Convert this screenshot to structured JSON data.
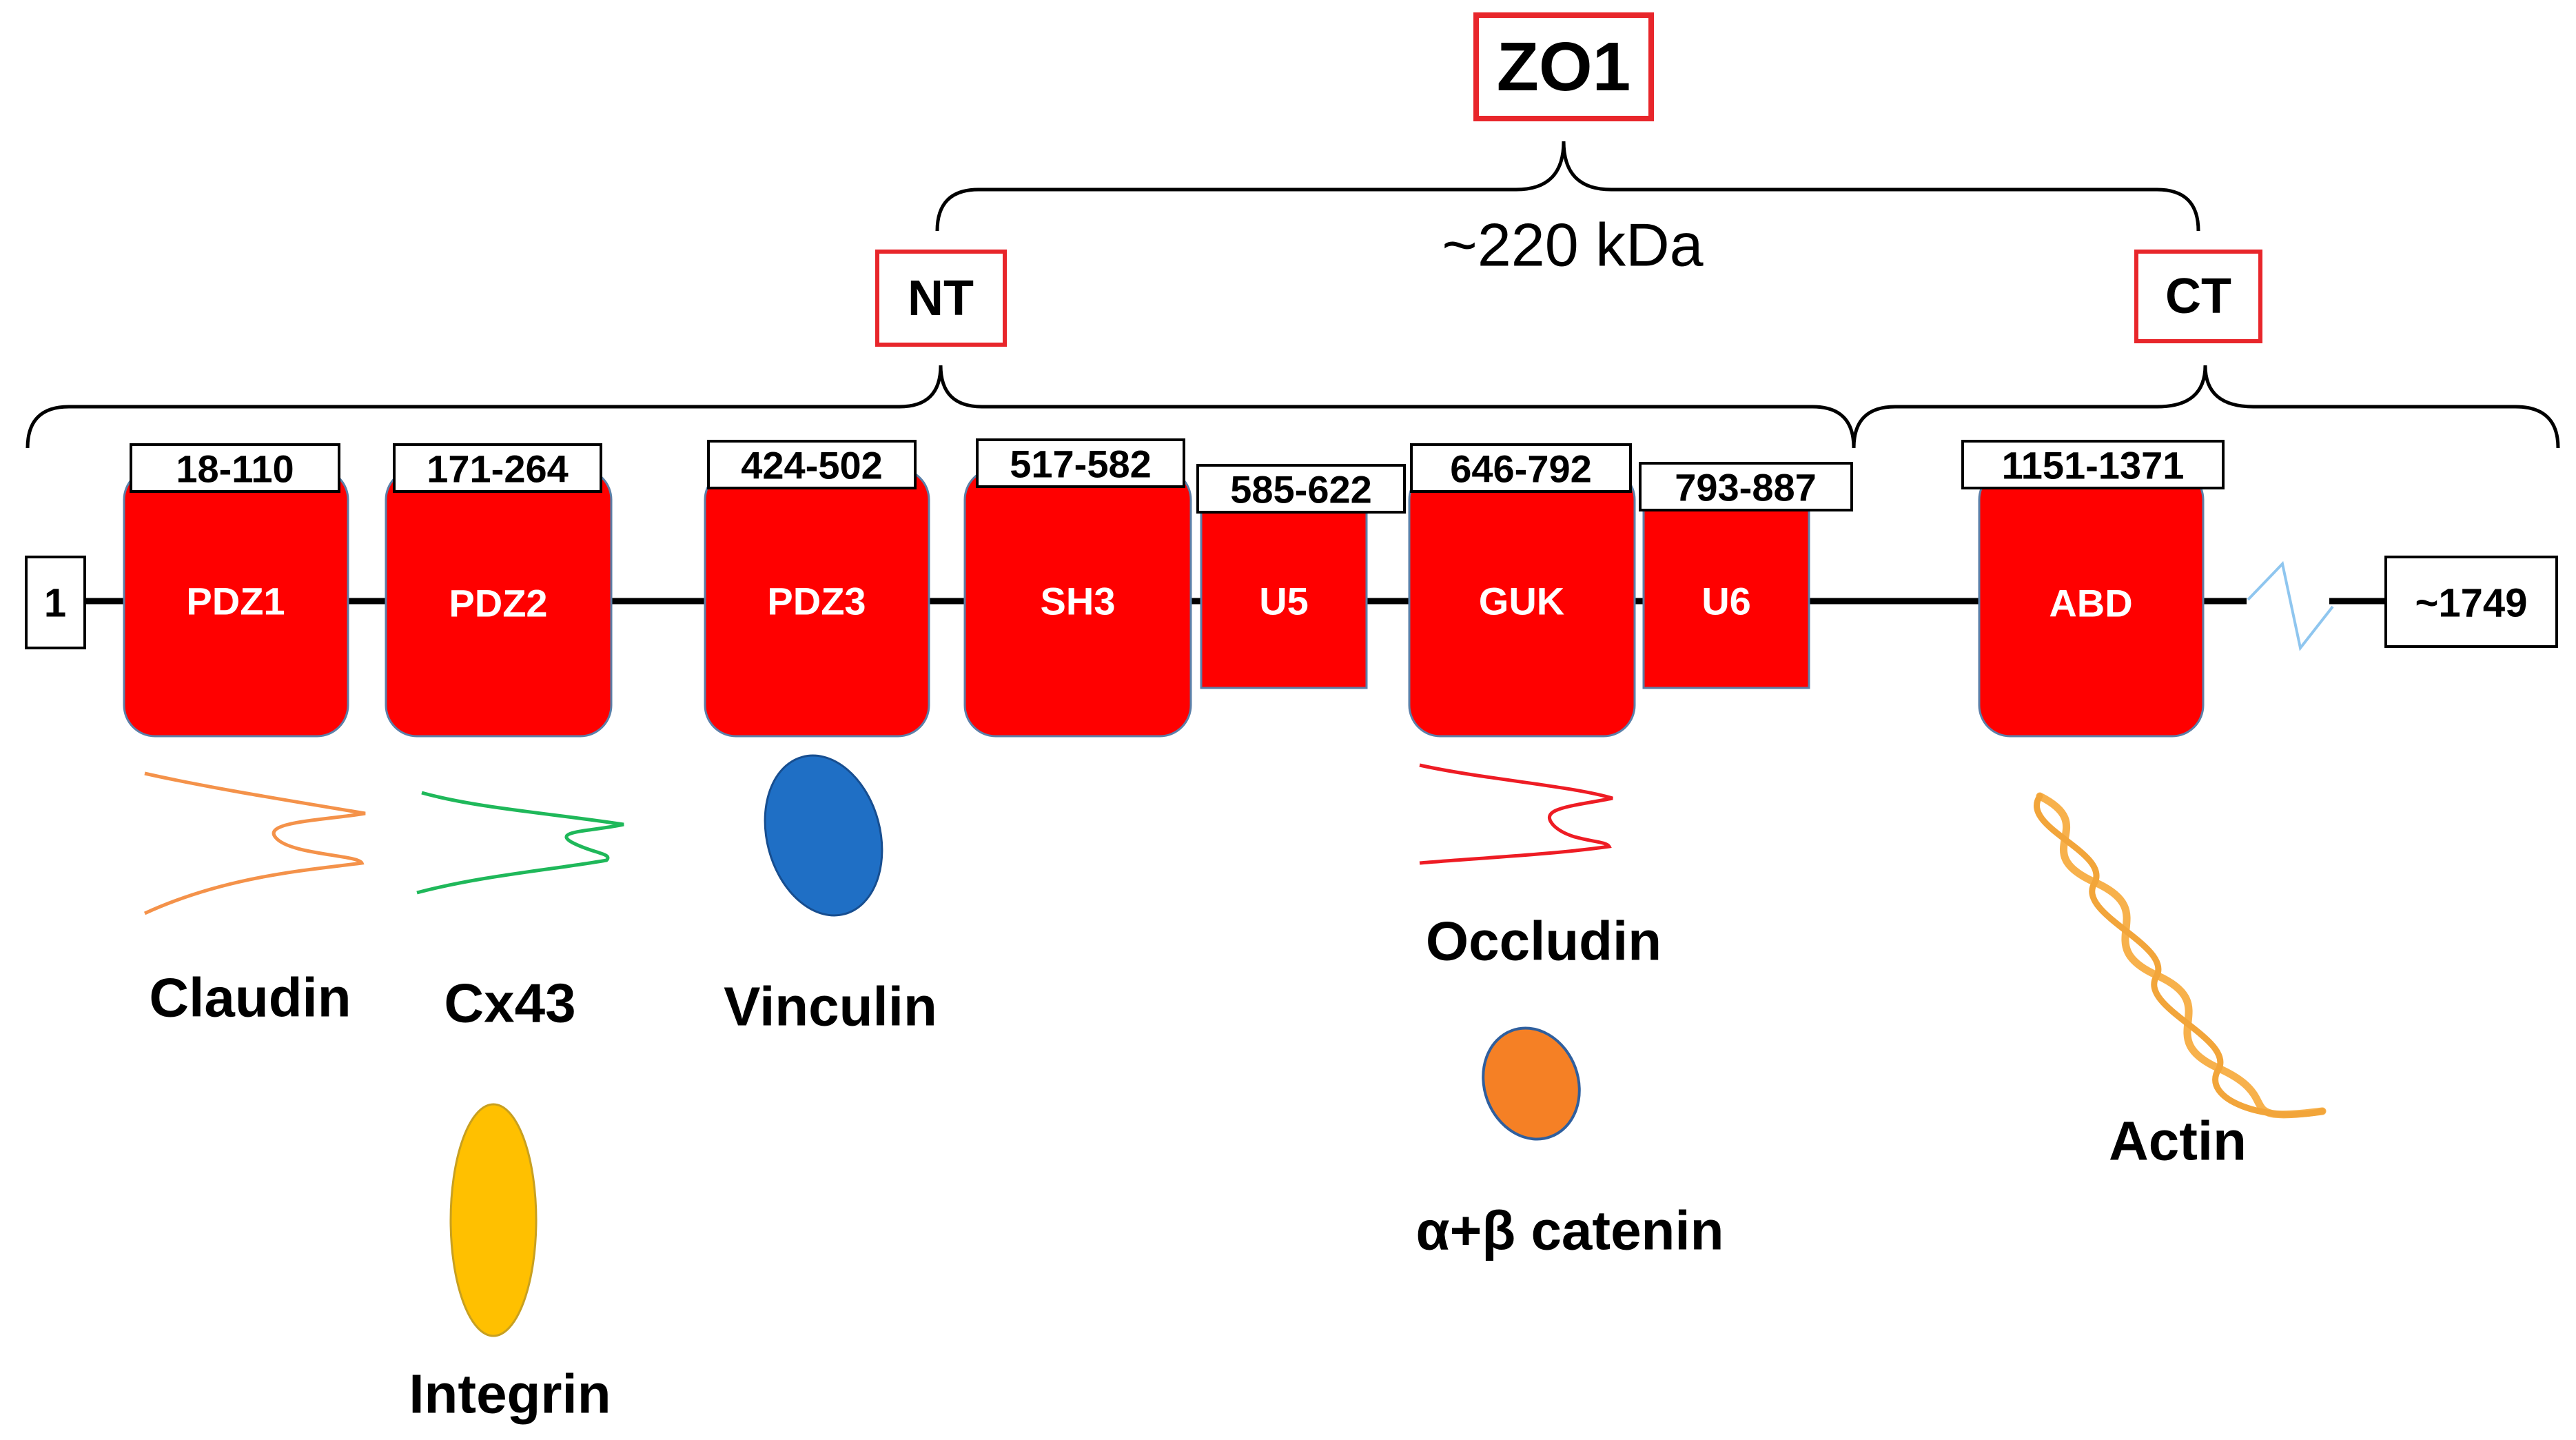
{
  "protein": {
    "name": "ZO1",
    "mass": "~220 kDa"
  },
  "regions": {
    "nt": "NT",
    "ct": "CT"
  },
  "termini": {
    "start": "1",
    "end": "~1749"
  },
  "domains": [
    {
      "label": "PDZ1",
      "range": "18-110"
    },
    {
      "label": "PDZ2",
      "range": "171-264"
    },
    {
      "label": "PDZ3",
      "range": "424-502"
    },
    {
      "label": "SH3",
      "range": "517-582"
    },
    {
      "label": "U5",
      "range": "585-622"
    },
    {
      "label": "GUK",
      "range": "646-792"
    },
    {
      "label": "U6",
      "range": "793-887"
    },
    {
      "label": "ABD",
      "range": "1151-1371"
    }
  ],
  "partners": {
    "claudin": "Claudin",
    "cx43": "Cx43",
    "integrin": "Integrin",
    "vinculin": "Vinculin",
    "occludin": "Occludin",
    "catenin": "α+β catenin",
    "actin": "Actin"
  },
  "colors": {
    "domain_fill": "#ff0000",
    "highlight_box": "#e8262b",
    "claudin": "#f4924a",
    "cx43": "#1fb85a",
    "integrin": "#ffc000",
    "vinculin": "#1f6fc5",
    "occludin": "#ee1c24",
    "catenin": "#f58025",
    "actin": "#f7b14c",
    "break": "#8fc6ef"
  }
}
